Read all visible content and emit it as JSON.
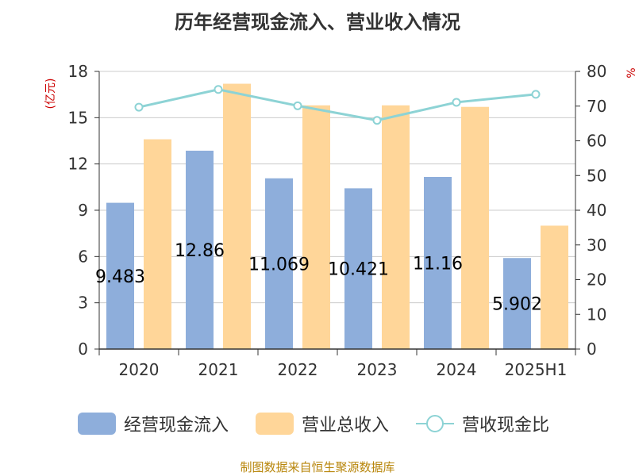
{
  "chart_data": {
    "type": "bar",
    "title": "历年经营现金流入、营业收入情况",
    "categories": [
      "2020",
      "2021",
      "2022",
      "2023",
      "2024",
      "2025H1"
    ],
    "ylabel_left": "(亿元)",
    "ylabel_right": "%",
    "ylim_left": [
      0,
      18
    ],
    "ylim_right": [
      0,
      80
    ],
    "yticks_left": [
      "0",
      "3",
      "6",
      "9",
      "12",
      "15",
      "18"
    ],
    "yticks_right": [
      "0",
      "10",
      "20",
      "30",
      "40",
      "50",
      "60",
      "70",
      "80"
    ],
    "grid": true,
    "legend_position": "bottom",
    "series": [
      {
        "name": "经营现金流入",
        "type": "bar",
        "axis": "left",
        "color": "#8eaedb",
        "values": [
          9.483,
          12.86,
          11.069,
          10.421,
          11.16,
          5.902
        ],
        "labels": [
          "9.483",
          "12.86",
          "11.069",
          "10.421",
          "11.16",
          "5.902"
        ]
      },
      {
        "name": "营业总收入",
        "type": "bar",
        "axis": "left",
        "color": "#ffd699",
        "values": [
          13.6,
          17.2,
          15.8,
          15.8,
          15.7,
          8.0
        ]
      },
      {
        "name": "营收现金比",
        "type": "line",
        "axis": "right",
        "color": "#8dd3d5",
        "values": [
          69.7,
          74.8,
          70.1,
          65.9,
          71.1,
          73.4
        ]
      }
    ]
  },
  "footer": {
    "source": "制图数据来自恒生聚源数据库"
  }
}
